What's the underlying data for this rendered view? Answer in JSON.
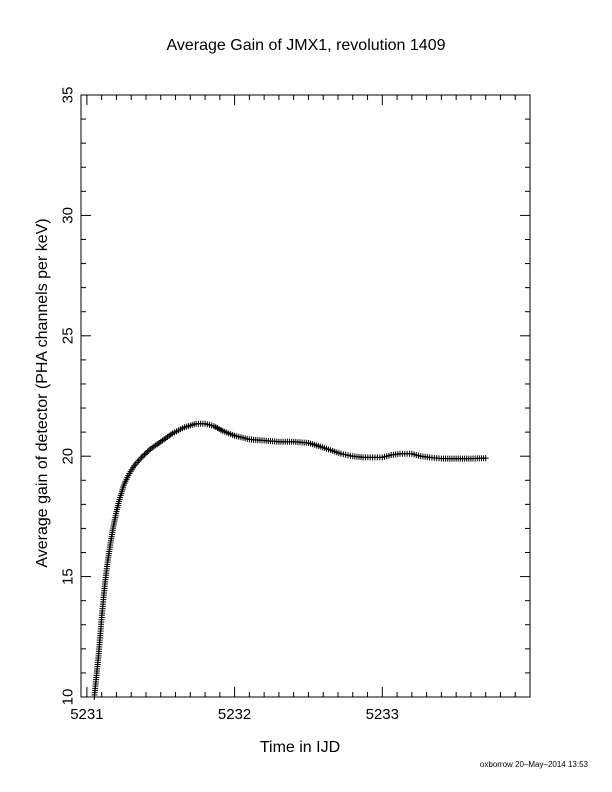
{
  "chart_data": {
    "type": "scatter",
    "title": "Average Gain of JMX1, revolution 1409",
    "xlabel": "Time in IJD",
    "ylabel": "Average gain of detector (PHA channels per keV)",
    "xlim": [
      5230.96,
      5234.0
    ],
    "ylim": [
      10,
      35
    ],
    "xticks": [
      5231,
      5232,
      5233
    ],
    "yticks": [
      10,
      15,
      20,
      25,
      30,
      35
    ],
    "xtick_labels": [
      "5231",
      "5232",
      "5233"
    ],
    "ytick_labels": [
      "10",
      "15",
      "20",
      "25",
      "30",
      "35"
    ],
    "grid": false,
    "marker": "plus",
    "series": [
      {
        "x": [
          5231.05,
          5231.08,
          5231.1,
          5231.12,
          5231.14,
          5231.16,
          5231.18,
          5231.2,
          5231.22,
          5231.25,
          5231.28,
          5231.32,
          5231.37,
          5231.43,
          5231.5,
          5231.58,
          5231.66,
          5231.74,
          5231.8,
          5231.86,
          5231.92,
          5232.0,
          5232.1,
          5232.2,
          5232.3,
          5232.4,
          5232.5,
          5232.58,
          5232.65,
          5232.72,
          5232.8,
          5232.87,
          5232.95,
          5233.0,
          5233.06,
          5233.12,
          5233.2,
          5233.26,
          5233.32,
          5233.4,
          5233.5,
          5233.6,
          5233.7
        ],
        "y": [
          10.0,
          11.8,
          13.3,
          14.6,
          15.6,
          16.4,
          17.1,
          17.7,
          18.2,
          18.8,
          19.2,
          19.6,
          19.95,
          20.3,
          20.6,
          20.95,
          21.2,
          21.35,
          21.35,
          21.25,
          21.05,
          20.85,
          20.7,
          20.65,
          20.6,
          20.6,
          20.55,
          20.4,
          20.25,
          20.1,
          20.0,
          19.95,
          19.95,
          19.95,
          20.05,
          20.1,
          20.1,
          20.0,
          19.95,
          19.9,
          19.9,
          19.9,
          19.92
        ]
      }
    ]
  },
  "footer": {
    "note": "oxborrow 20–May–2014 13:53"
  }
}
